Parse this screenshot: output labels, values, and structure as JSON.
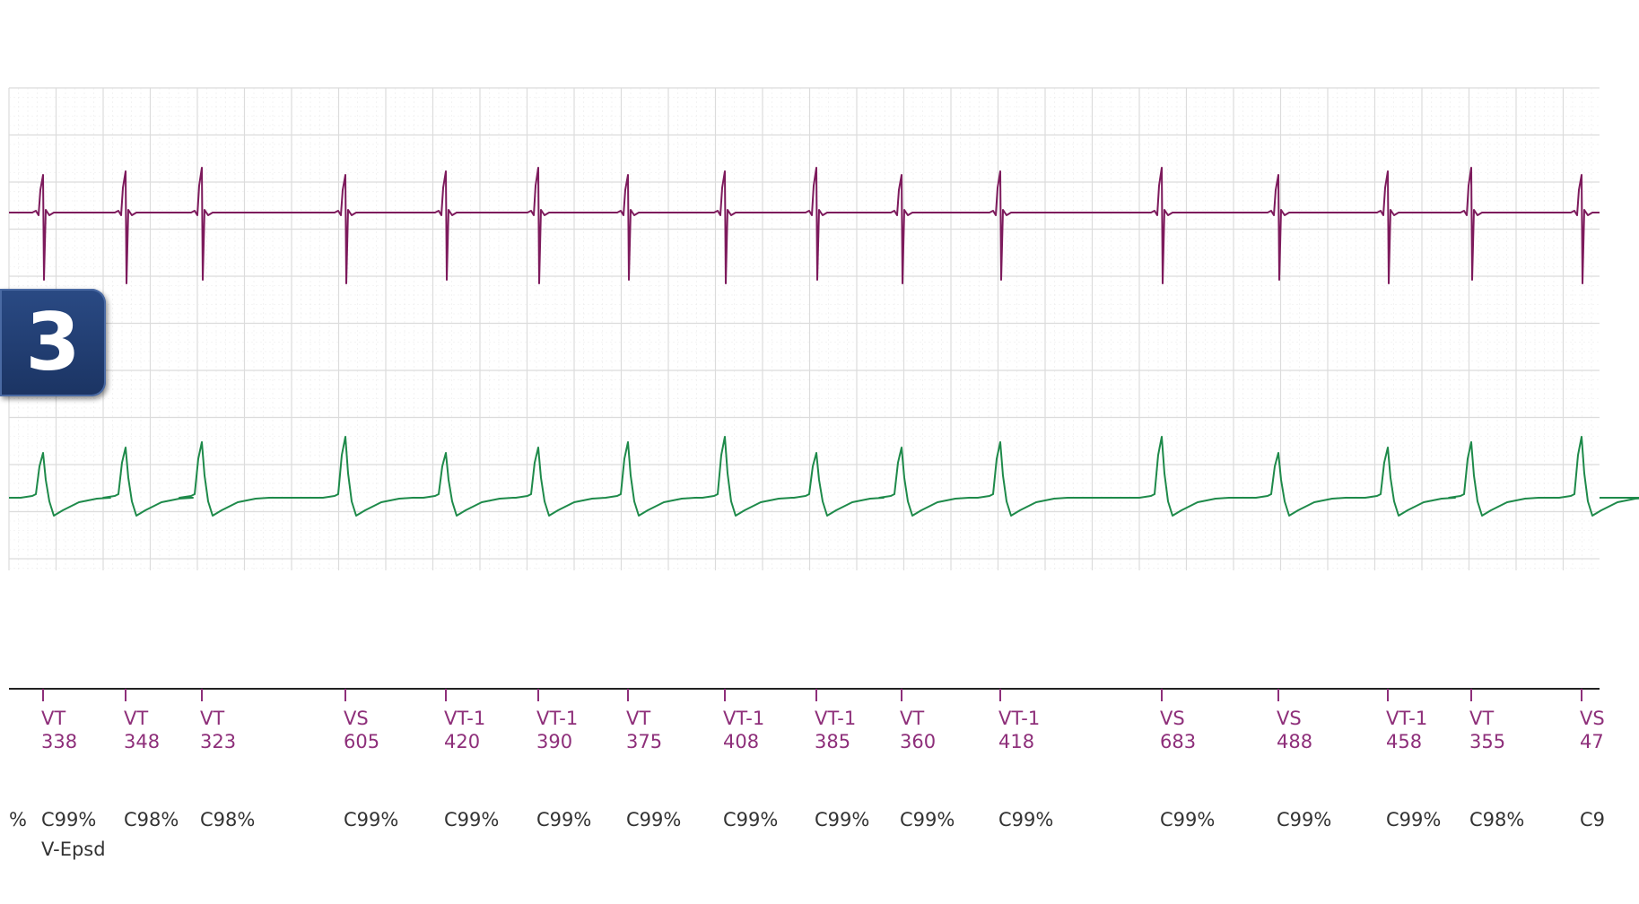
{
  "panel_number": "3",
  "colors": {
    "trace_top": "#7d1a5c",
    "trace_bottom": "#1e8a4a",
    "marker_label": "#8e2f7a",
    "confidence_label": "#333333",
    "grid_major": "#dcdcdc",
    "grid_minor": "#ececec",
    "panel_badge": "#1f3a6e"
  },
  "chart_data": {
    "type": "line",
    "title": "",
    "xlabel": "",
    "ylabel": "",
    "grid": true,
    "series": [
      {
        "key": "upper_electrogram",
        "color": "#7d1a5c",
        "spike_shape": "biphasic"
      },
      {
        "key": "lower_electrogram",
        "color": "#1e8a4a",
        "spike_shape": "monophasic"
      }
    ],
    "markers": [
      {
        "label": "VT",
        "interval": "338",
        "confidence": "C99%"
      },
      {
        "label": "VT",
        "interval": "348",
        "confidence": "C98%"
      },
      {
        "label": "VT",
        "interval": "323",
        "confidence": "C98%"
      },
      {
        "label": "VS",
        "interval": "605",
        "confidence": "C99%"
      },
      {
        "label": "VT-1",
        "interval": "420",
        "confidence": "C99%"
      },
      {
        "label": "VT-1",
        "interval": "390",
        "confidence": "C99%"
      },
      {
        "label": "VT",
        "interval": "375",
        "confidence": "C99%"
      },
      {
        "label": "VT-1",
        "interval": "408",
        "confidence": "C99%"
      },
      {
        "label": "VT-1",
        "interval": "385",
        "confidence": "C99%"
      },
      {
        "label": "VT",
        "interval": "360",
        "confidence": "C99%"
      },
      {
        "label": "VT-1",
        "interval": "418",
        "confidence": "C99%"
      },
      {
        "label": "VS",
        "interval": "683",
        "confidence": "C99%"
      },
      {
        "label": "VS",
        "interval": "488",
        "confidence": "C99%"
      },
      {
        "label": "VT-1",
        "interval": "458",
        "confidence": "C99%"
      },
      {
        "label": "VT",
        "interval": "355",
        "confidence": "C98%"
      },
      {
        "label": "VS",
        "interval": "47",
        "confidence": "C9"
      }
    ],
    "left_cut_confidence": "%",
    "episode_label": "V-Epsd"
  }
}
